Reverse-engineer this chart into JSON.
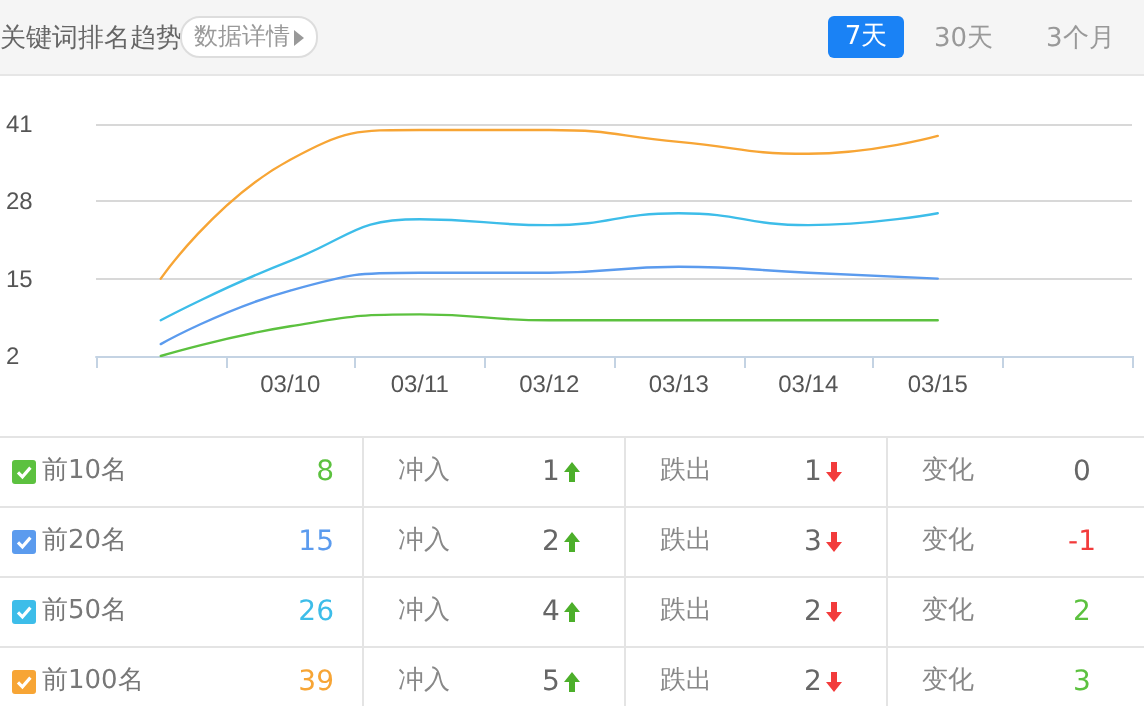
{
  "chart_data": {
    "type": "line",
    "title": "关键词排名趋势",
    "categories": [
      null,
      "03/10",
      "03/11",
      "03/12",
      "03/13",
      "03/14",
      "03/15",
      null
    ],
    "series": [
      {
        "name": "前10名",
        "color": "#5cc13f",
        "values": [
          2,
          7,
          9,
          8,
          8,
          8,
          8,
          null
        ]
      },
      {
        "name": "前20名",
        "color": "#5b9bee",
        "values": [
          4,
          13,
          16,
          16,
          17,
          16,
          15,
          null
        ]
      },
      {
        "name": "前50名",
        "color": "#3dbde9",
        "values": [
          8,
          18,
          25,
          24,
          26,
          24,
          26,
          null
        ]
      },
      {
        "name": "前100名",
        "color": "#f7a535",
        "values": [
          15,
          35,
          40,
          40,
          38,
          36,
          39,
          null
        ]
      }
    ],
    "ylim": [
      2,
      41
    ],
    "yticks": [
      2,
      15,
      28,
      41
    ],
    "grid": "y",
    "legend": "bottom",
    "marker": "none",
    "line_style": "solid",
    "annotations": [
      "数据详情",
      "7天",
      "30天",
      "3个月",
      "8",
      "冲入",
      "1",
      "跌出",
      "1",
      "变化",
      "0",
      "15",
      "冲入",
      "2",
      "跌出",
      "3",
      "变化",
      "-1",
      "26",
      "冲入",
      "4",
      "跌出",
      "2",
      "变化",
      "2",
      "39",
      "冲入",
      "5",
      "跌出",
      "2",
      "变化",
      "3"
    ]
  }
}
